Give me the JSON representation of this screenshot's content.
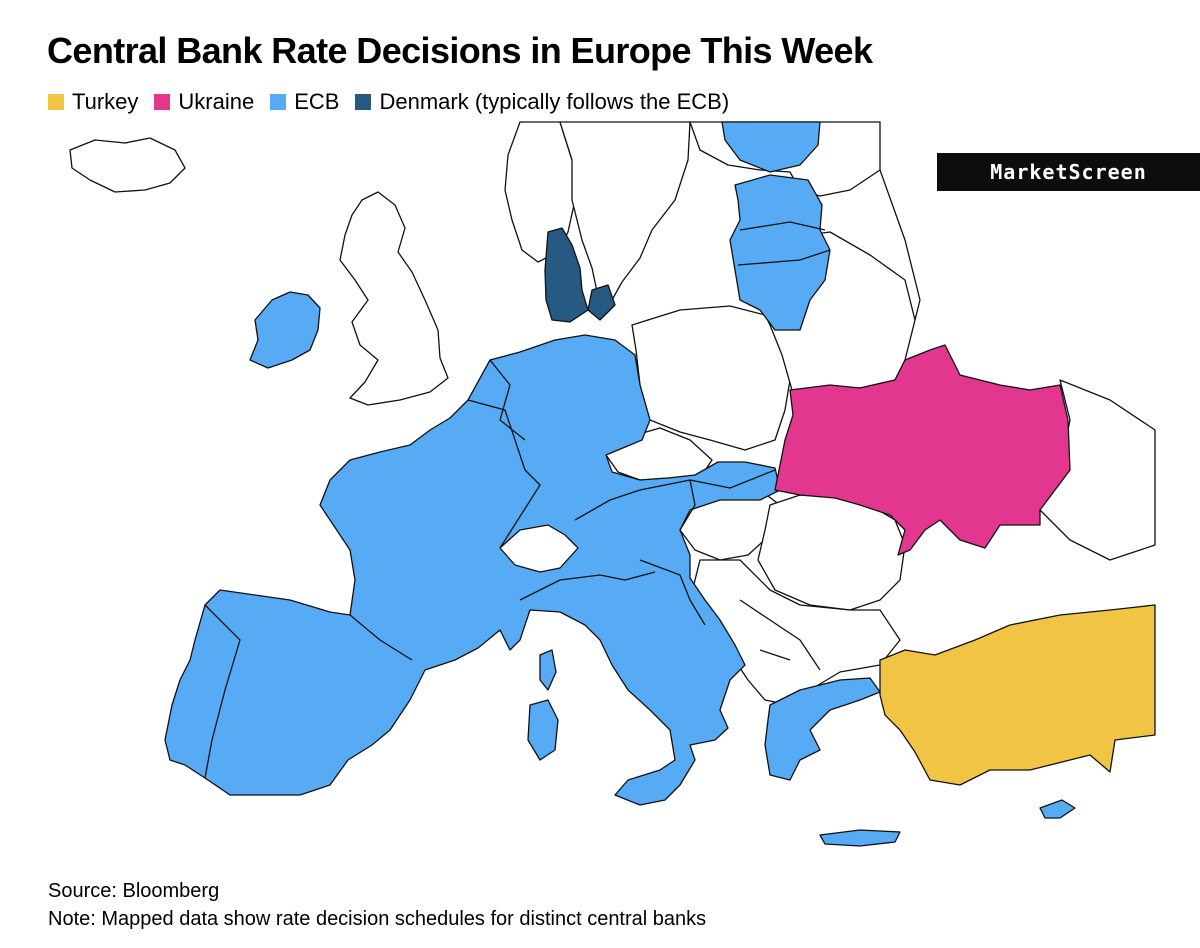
{
  "title": "Central Bank Rate Decisions in Europe This Week",
  "legend": [
    {
      "label": "Turkey",
      "color": "#f2c443"
    },
    {
      "label": "Ukraine",
      "color": "#e3368e"
    },
    {
      "label": "ECB",
      "color": "#56abf4"
    },
    {
      "label": "Denmark (typically follows the ECB)",
      "color": "#275a82"
    }
  ],
  "watermark": "MarketScreen",
  "colors": {
    "none": "#ffffff",
    "outline": "#111111"
  },
  "regions": {
    "turkey": {
      "group": "Turkey"
    },
    "ukraine": {
      "group": "Ukraine"
    },
    "ecb": {
      "group": "ECB"
    },
    "denmark": {
      "group": "Denmark"
    }
  },
  "source": "Source: Bloomberg",
  "note": "Note: Mapped data show rate decision schedules for distinct central banks"
}
